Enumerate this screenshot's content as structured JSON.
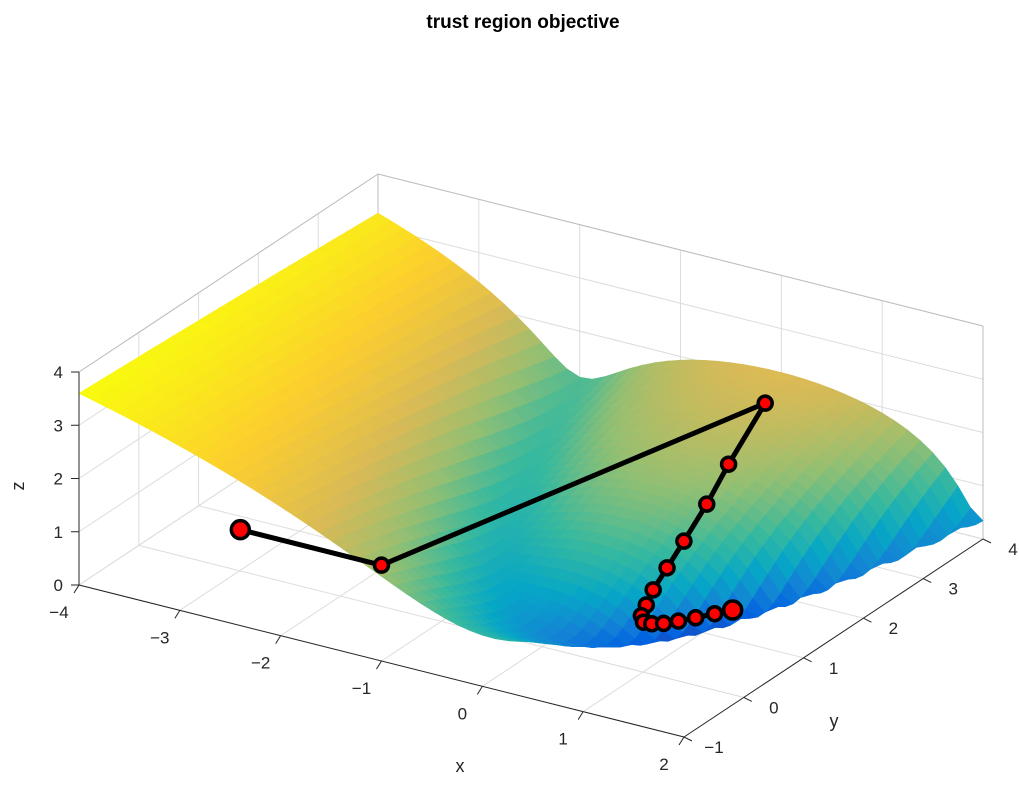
{
  "chart_data": {
    "type": "surface3d",
    "title": "trust region objective",
    "xlabel": "x",
    "ylabel": "y",
    "zlabel": "z",
    "xlim": [
      -4,
      2
    ],
    "ylim": [
      -1,
      4
    ],
    "zlim": [
      0,
      4
    ],
    "x_ticks": [
      "-4",
      "-3",
      "-2",
      "-1",
      "0",
      "1",
      "2"
    ],
    "y_ticks": [
      "-1",
      "0",
      "1",
      "2",
      "3",
      "4"
    ],
    "z_ticks": [
      "0",
      "1",
      "2",
      "3",
      "4"
    ],
    "grid": true,
    "colormap": "parula",
    "colormap_stops": [
      "#352a87",
      "#0363e1",
      "#1485d4",
      "#06a7c6",
      "#38b99e",
      "#92bf73",
      "#d9ba56",
      "#fcce2e",
      "#f9fb0e"
    ],
    "path_line_color": "#000000",
    "path_marker_color": "#ff0000",
    "path": {
      "x": [
        -2.4,
        -1.0,
        0.0,
        0.07,
        0.15,
        0.22,
        0.29,
        0.36,
        0.44,
        0.51,
        0.59,
        0.66,
        0.73,
        0.8,
        0.87,
        0.94,
        1.0
      ],
      "y": [
        -1.0,
        -1.0,
        3.73,
        3.0,
        2.5,
        2.0,
        1.6,
        1.25,
        1.0,
        0.8,
        0.7,
        0.72,
        0.8,
        0.93,
        1.1,
        1.3,
        1.5
      ],
      "z": [
        1.8,
        1.8,
        1.8,
        1.23,
        0.89,
        0.6,
        0.43,
        0.31,
        0.25,
        0.23,
        0.22,
        0.21,
        0.19,
        0.17,
        0.14,
        0.1,
        0.05
      ]
    }
  }
}
